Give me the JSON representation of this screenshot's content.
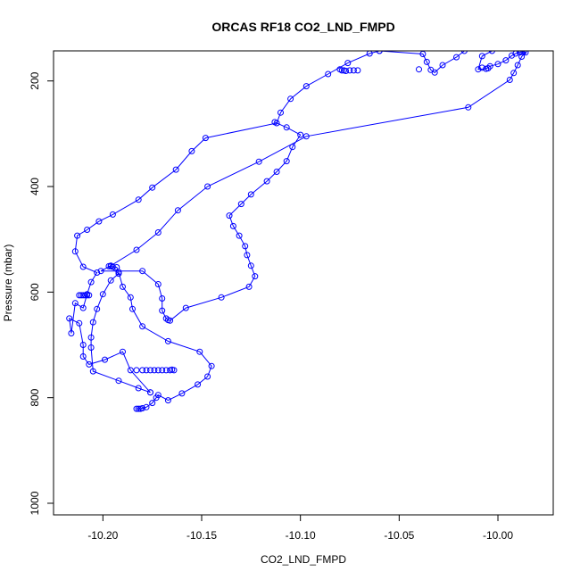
{
  "chart_data": {
    "type": "scatter",
    "title": "ORCAS RF18 CO2_LND_FMPD",
    "xlabel": "CO2_LND_FMPD",
    "ylabel": "Pressure (mbar)",
    "xlim": [
      -10.225,
      -9.972
    ],
    "ylim": [
      1022,
      143
    ],
    "y_reversed": true,
    "grid": false,
    "legend": "none",
    "color": "#0000ff",
    "x_ticks": [
      -10.2,
      -10.15,
      -10.1,
      -10.05,
      -10.0
    ],
    "x_tick_labels": [
      "-10.20",
      "-10.15",
      "-10.10",
      "-10.05",
      "-10.00"
    ],
    "y_ticks": [
      200,
      400,
      600,
      800,
      1000
    ],
    "y_tick_labels": [
      "200",
      "400",
      "600",
      "800",
      "1000"
    ],
    "series": [
      {
        "style": "line+markers",
        "points": [
          [
            -10.183,
            821
          ],
          [
            -10.182,
            821
          ],
          [
            -10.181,
            821
          ],
          [
            -10.18,
            820
          ],
          [
            -10.178,
            818
          ],
          [
            -10.175,
            810
          ],
          [
            -10.173,
            800
          ],
          [
            -10.172,
            795
          ],
          [
            -10.167,
            805
          ],
          [
            -10.16,
            792
          ],
          [
            -10.152,
            775
          ],
          [
            -10.147,
            760
          ],
          [
            -10.145,
            740
          ],
          [
            -10.151,
            713
          ],
          [
            -10.167,
            693
          ],
          [
            -10.18,
            665
          ],
          [
            -10.185,
            632
          ],
          [
            -10.186,
            610
          ],
          [
            -10.19,
            590
          ],
          [
            -10.192,
            562
          ],
          [
            -10.193,
            553
          ],
          [
            -10.195,
            552
          ],
          [
            -10.196,
            551
          ],
          [
            -10.197,
            551
          ],
          [
            -10.192,
            565
          ],
          [
            -10.196,
            578
          ],
          [
            -10.2,
            604
          ],
          [
            -10.203,
            632
          ],
          [
            -10.205,
            657
          ],
          [
            -10.206,
            686
          ],
          [
            -10.206,
            705
          ],
          [
            -10.205,
            750
          ],
          [
            -10.192,
            768
          ],
          [
            -10.182,
            782
          ],
          [
            -10.176,
            790
          ]
        ]
      },
      {
        "style": "line+markers",
        "points": [
          [
            -10.176,
            790
          ],
          [
            -10.186,
            748
          ],
          [
            -10.19,
            713
          ],
          [
            -10.199,
            728
          ],
          [
            -10.207,
            737
          ],
          [
            -10.21,
            722
          ],
          [
            -10.21,
            700
          ],
          [
            -10.212,
            659
          ],
          [
            -10.217,
            650
          ],
          [
            -10.216,
            678
          ],
          [
            -10.214,
            621
          ],
          [
            -10.21,
            630
          ],
          [
            -10.208,
            604
          ],
          [
            -10.206,
            581
          ],
          [
            -10.203,
            563
          ],
          [
            -10.21,
            552
          ],
          [
            -10.214,
            523
          ],
          [
            -10.213,
            493
          ],
          [
            -10.208,
            482
          ],
          [
            -10.202,
            466
          ],
          [
            -10.195,
            453
          ],
          [
            -10.182,
            425
          ],
          [
            -10.175,
            402
          ],
          [
            -10.163,
            368
          ],
          [
            -10.155,
            333
          ],
          [
            -10.148,
            308
          ],
          [
            -10.112,
            280
          ],
          [
            -10.11,
            260
          ],
          [
            -10.105,
            234
          ],
          [
            -10.097,
            210
          ],
          [
            -10.086,
            187
          ],
          [
            -10.076,
            166
          ],
          [
            -10.065,
            148
          ],
          [
            -10.06,
            143
          ]
        ]
      },
      {
        "style": "line+markers",
        "points": [
          [
            -10.06,
            143
          ],
          [
            -10.038,
            149
          ],
          [
            -10.036,
            164
          ],
          [
            -10.034,
            179
          ],
          [
            -10.032,
            184
          ],
          [
            -10.028,
            170
          ],
          [
            -10.021,
            155
          ],
          [
            -10.017,
            143
          ]
        ]
      },
      {
        "style": "line+markers",
        "points": [
          [
            -10.003,
            143
          ],
          [
            -10.008,
            153
          ],
          [
            -10.01,
            178
          ],
          [
            -10.006,
            177
          ],
          [
            -10.004,
            172
          ],
          [
            -10.0,
            168
          ],
          [
            -9.996,
            161
          ],
          [
            -9.993,
            152
          ],
          [
            -9.991,
            148
          ],
          [
            -9.989,
            146
          ],
          [
            -9.988,
            145
          ],
          [
            -9.987,
            145
          ],
          [
            -9.986,
            146
          ],
          [
            -9.988,
            154
          ],
          [
            -9.99,
            170
          ],
          [
            -9.992,
            185
          ],
          [
            -9.994,
            198
          ],
          [
            -10.015,
            250
          ],
          [
            -10.097,
            305
          ],
          [
            -10.121,
            353
          ],
          [
            -10.147,
            400
          ],
          [
            -10.162,
            445
          ],
          [
            -10.172,
            487
          ],
          [
            -10.183,
            520
          ],
          [
            -10.196,
            550
          ],
          [
            -10.201,
            560
          ],
          [
            -10.18,
            560
          ],
          [
            -10.172,
            585
          ],
          [
            -10.17,
            612
          ],
          [
            -10.17,
            635
          ],
          [
            -10.168,
            650
          ],
          [
            -10.167,
            653
          ],
          [
            -10.166,
            654
          ],
          [
            -10.158,
            630
          ],
          [
            -10.14,
            610
          ],
          [
            -10.126,
            590
          ],
          [
            -10.123,
            570
          ],
          [
            -10.125,
            550
          ],
          [
            -10.127,
            530
          ],
          [
            -10.128,
            513
          ],
          [
            -10.131,
            493
          ],
          [
            -10.134,
            475
          ],
          [
            -10.136,
            455
          ],
          [
            -10.13,
            433
          ],
          [
            -10.125,
            415
          ],
          [
            -10.117,
            390
          ],
          [
            -10.112,
            372
          ],
          [
            -10.107,
            352
          ],
          [
            -10.104,
            325
          ],
          [
            -10.1,
            302
          ],
          [
            -10.107,
            288
          ],
          [
            -10.113,
            278
          ]
        ]
      },
      {
        "style": "markers",
        "points": [
          [
            -10.212,
            606
          ],
          [
            -10.211,
            606
          ],
          [
            -10.21,
            606
          ],
          [
            -10.209,
            606
          ],
          [
            -10.208,
            606
          ],
          [
            -10.207,
            606
          ],
          [
            -10.08,
            178
          ],
          [
            -10.079,
            180
          ],
          [
            -10.078,
            180
          ],
          [
            -10.077,
            181
          ],
          [
            -10.075,
            180
          ],
          [
            -10.073,
            180
          ],
          [
            -10.071,
            180
          ],
          [
            -10.04,
            178
          ],
          [
            -10.008,
            175
          ],
          [
            -10.005,
            176
          ],
          [
            -10.183,
            748
          ],
          [
            -10.18,
            748
          ],
          [
            -10.178,
            748
          ],
          [
            -10.176,
            748
          ],
          [
            -10.174,
            748
          ],
          [
            -10.172,
            748
          ],
          [
            -10.17,
            748
          ],
          [
            -10.168,
            748
          ],
          [
            -10.166,
            748
          ],
          [
            -10.165,
            747
          ],
          [
            -10.164,
            748
          ]
        ]
      }
    ]
  }
}
